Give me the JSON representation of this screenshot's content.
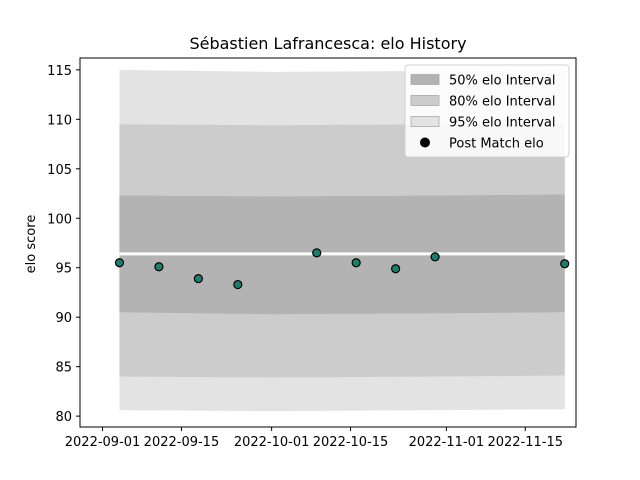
{
  "chart_data": {
    "type": "scatter",
    "title": "Sébastien Lafrancesca: elo History",
    "xlabel": "",
    "ylabel": "elo score",
    "xlim": [
      "2022-08-28",
      "2022-11-24"
    ],
    "ylim": [
      78.9,
      116.2
    ],
    "x_ticks": [
      "2022-09-01",
      "2022-09-15",
      "2022-10-01",
      "2022-10-15",
      "2022-11-01",
      "2022-11-15"
    ],
    "y_ticks": [
      80,
      85,
      90,
      95,
      100,
      105,
      110,
      115
    ],
    "grid": false,
    "legend_position": "top-right",
    "bands": [
      {
        "name": "95% elo Interval",
        "color": "#e3e3e3",
        "points": [
          {
            "x": "2022-09-04",
            "lo": 80.6,
            "hi": 115.0
          },
          {
            "x": "2022-10-01",
            "lo": 80.5,
            "hi": 114.8
          },
          {
            "x": "2022-11-01",
            "lo": 80.6,
            "hi": 114.9
          },
          {
            "x": "2022-11-22",
            "lo": 80.7,
            "hi": 115.0
          }
        ]
      },
      {
        "name": "80% elo Interval",
        "color": "#cccccc",
        "points": [
          {
            "x": "2022-09-04",
            "lo": 84.0,
            "hi": 109.5
          },
          {
            "x": "2022-10-01",
            "lo": 83.9,
            "hi": 109.4
          },
          {
            "x": "2022-11-01",
            "lo": 84.0,
            "hi": 109.5
          },
          {
            "x": "2022-11-22",
            "lo": 84.1,
            "hi": 109.6
          }
        ]
      },
      {
        "name": "50% elo Interval",
        "color": "#b3b3b3",
        "points": [
          {
            "x": "2022-09-04",
            "lo": 90.5,
            "hi": 102.3
          },
          {
            "x": "2022-10-01",
            "lo": 90.3,
            "hi": 102.2
          },
          {
            "x": "2022-11-01",
            "lo": 90.4,
            "hi": 102.3
          },
          {
            "x": "2022-11-22",
            "lo": 90.5,
            "hi": 102.4
          }
        ]
      }
    ],
    "mean_line": {
      "color": "#ffffff",
      "points": [
        {
          "x": "2022-09-04",
          "y": 96.4
        },
        {
          "x": "2022-11-22",
          "y": 96.4
        }
      ]
    },
    "series": [
      {
        "name": "Post Match elo",
        "color": "#1b7f6e",
        "points": [
          {
            "x": "2022-09-04",
            "y": 95.5
          },
          {
            "x": "2022-09-11",
            "y": 95.1
          },
          {
            "x": "2022-09-18",
            "y": 93.9
          },
          {
            "x": "2022-09-25",
            "y": 93.3
          },
          {
            "x": "2022-10-09",
            "y": 96.5
          },
          {
            "x": "2022-10-16",
            "y": 95.5
          },
          {
            "x": "2022-10-23",
            "y": 94.9
          },
          {
            "x": "2022-10-30",
            "y": 96.1
          },
          {
            "x": "2022-11-22",
            "y": 95.4
          }
        ]
      }
    ],
    "legend": [
      {
        "label": "50% elo Interval",
        "kind": "patch",
        "color": "#b3b3b3"
      },
      {
        "label": "80% elo Interval",
        "kind": "patch",
        "color": "#cccccc"
      },
      {
        "label": "95% elo Interval",
        "kind": "patch",
        "color": "#e3e3e3"
      },
      {
        "label": "Post Match elo",
        "kind": "marker",
        "color": "#000000"
      }
    ]
  }
}
